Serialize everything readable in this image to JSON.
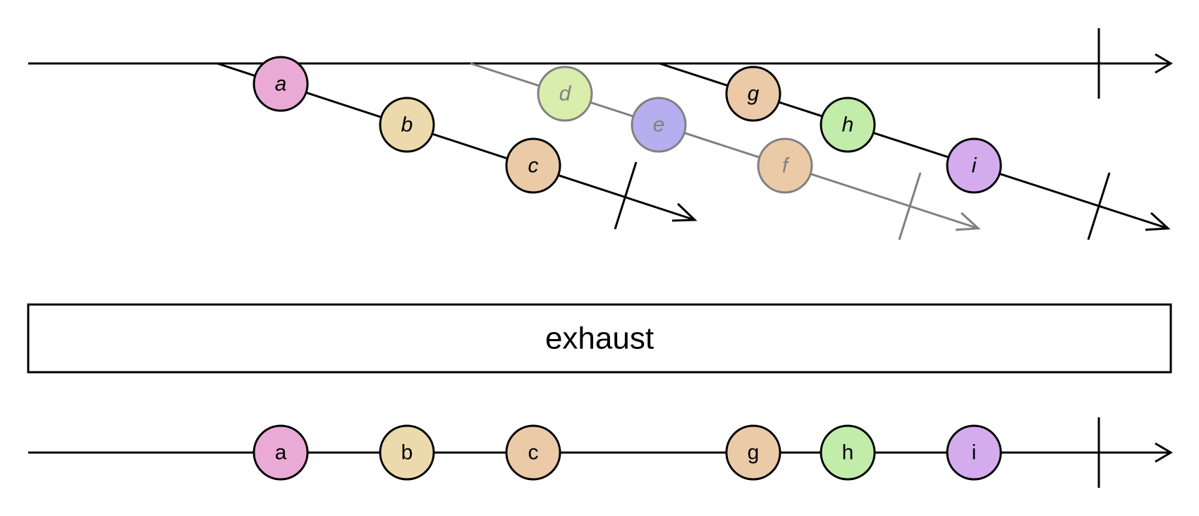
{
  "operator": {
    "label": "exhaust"
  },
  "colors": {
    "stroke_active": "#000000",
    "stroke_ignored": "#808080",
    "marble_a": "#eaaad6",
    "marble_b": "#ecdaad",
    "marble_c": "#ebcaa8",
    "marble_d": "#d9edac",
    "marble_e": "#b6aeee",
    "marble_f": "#ebcaa8",
    "marble_g": "#ebcaa8",
    "marble_h": "#c2ecaa",
    "marble_i": "#d4acee"
  },
  "input": {
    "inner_streams": [
      {
        "marbles": [
          "a",
          "b",
          "c"
        ],
        "ignored": false
      },
      {
        "marbles": [
          "d",
          "e",
          "f"
        ],
        "ignored": true
      },
      {
        "marbles": [
          "g",
          "h",
          "i"
        ],
        "ignored": false
      }
    ]
  },
  "output": {
    "marbles": [
      "a",
      "b",
      "c",
      "g",
      "h",
      "i"
    ]
  }
}
